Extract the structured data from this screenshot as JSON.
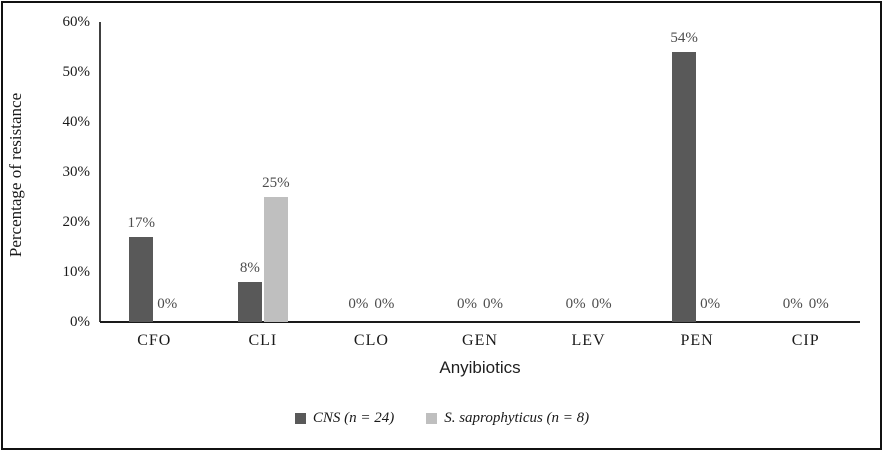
{
  "chart_data": {
    "type": "bar",
    "title": "",
    "xlabel": "Anyibiotics",
    "ylabel": "Percentage of resistance",
    "categories": [
      "CFO",
      "CLI",
      "CLO",
      "GEN",
      "LEV",
      "PEN",
      "CIP"
    ],
    "series": [
      {
        "name": "CNS (n = 24)",
        "color": "#595959",
        "values": [
          17,
          8,
          0,
          0,
          0,
          54,
          0
        ],
        "labels": [
          "17%",
          "8%",
          "0%",
          "0%",
          "0%",
          "54%",
          "0%"
        ]
      },
      {
        "name": "S. saprophyticus (n = 8)",
        "color": "#bfbfbf",
        "values": [
          0,
          25,
          0,
          0,
          0,
          0,
          0
        ],
        "labels": [
          "0%",
          "25%",
          "0%",
          "0%",
          "0%",
          "0%",
          "0%"
        ]
      }
    ],
    "ylim": [
      0,
      60
    ],
    "ytick_step": 10,
    "ytick_labels": [
      "0%",
      "10%",
      "20%",
      "30%",
      "40%",
      "50%",
      "60%"
    ],
    "grid": false,
    "legend_position": "bottom-center",
    "data_labels_shown": true
  }
}
